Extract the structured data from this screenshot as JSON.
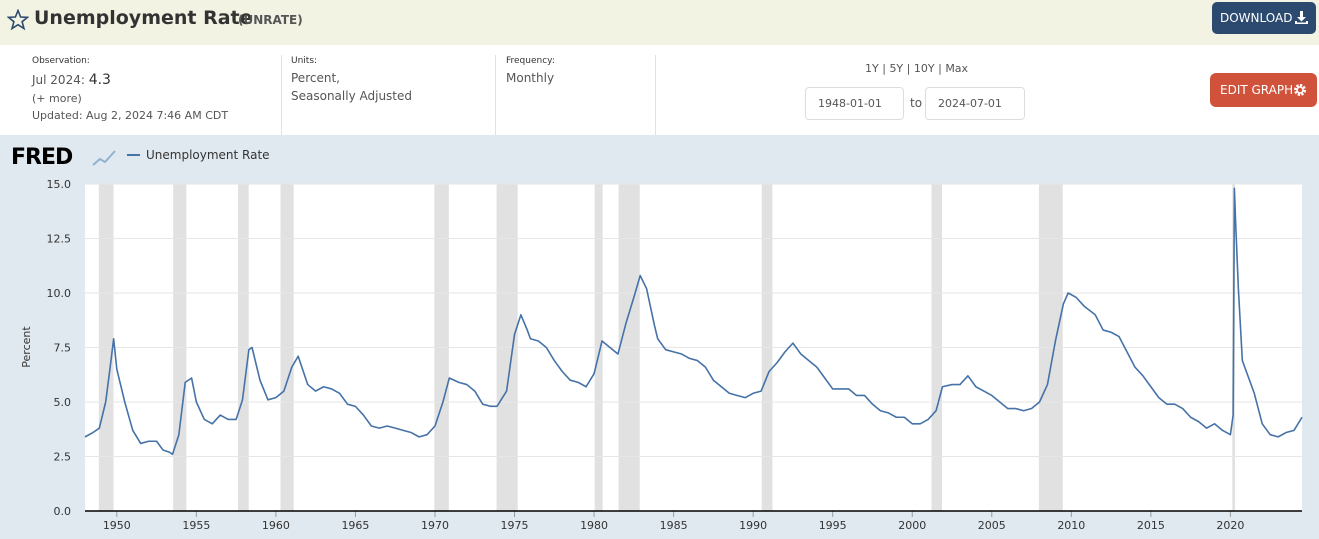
{
  "header": {
    "title": "Unemployment Rate",
    "series_id": "(UNRATE)",
    "download": "DOWNLOAD"
  },
  "info": {
    "observation_label": "Observation:",
    "observation_date": "Jul 2024:",
    "observation_value": "4.3",
    "more": "(+ more)",
    "updated": "Updated: Aug 2, 2024 7:46 AM CDT",
    "units_label": "Units:",
    "units": [
      "Percent,",
      "Seasonally Adjusted"
    ],
    "frequency_label": "Frequency:",
    "frequency": "Monthly"
  },
  "controls": {
    "ranges": [
      "1Y",
      "5Y",
      "10Y",
      "Max"
    ],
    "separator": "|",
    "start": "1948-01-01",
    "to": "to",
    "end": "2024-07-01",
    "edit": "EDIT GRAPH"
  },
  "chart_data": {
    "type": "line",
    "logo": "FRED",
    "ylabel": "Percent",
    "x": [
      1948.0,
      1948.5,
      1948.9,
      1949.3,
      1949.6,
      1949.8,
      1950.0,
      1950.5,
      1951.0,
      1951.5,
      1952.0,
      1952.5,
      1952.9,
      1953.3,
      1953.5,
      1953.9,
      1954.3,
      1954.7,
      1955.0,
      1955.5,
      1956.0,
      1956.5,
      1957.0,
      1957.5,
      1957.9,
      1958.3,
      1958.5,
      1959.0,
      1959.5,
      1960.0,
      1960.5,
      1961.0,
      1961.4,
      1962.0,
      1962.5,
      1963.0,
      1963.5,
      1964.0,
      1964.5,
      1965.0,
      1965.5,
      1966.0,
      1966.5,
      1967.0,
      1967.5,
      1968.0,
      1968.5,
      1969.0,
      1969.5,
      1970.0,
      1970.5,
      1970.9,
      1971.5,
      1972.0,
      1972.5,
      1973.0,
      1973.5,
      1973.9,
      1974.5,
      1975.0,
      1975.4,
      1975.8,
      1976.0,
      1976.5,
      1977.0,
      1977.5,
      1978.0,
      1978.5,
      1979.0,
      1979.5,
      1980.0,
      1980.5,
      1981.0,
      1981.5,
      1982.0,
      1982.5,
      1982.9,
      1983.3,
      1983.8,
      1984.0,
      1984.5,
      1985.0,
      1985.5,
      1986.0,
      1986.5,
      1987.0,
      1987.5,
      1988.0,
      1988.5,
      1989.0,
      1989.5,
      1990.0,
      1990.5,
      1991.0,
      1991.5,
      1992.0,
      1992.5,
      1993.0,
      1993.5,
      1994.0,
      1994.5,
      1995.0,
      1995.5,
      1996.0,
      1996.5,
      1997.0,
      1997.5,
      1998.0,
      1998.5,
      1999.0,
      1999.5,
      2000.0,
      2000.5,
      2001.0,
      2001.5,
      2001.9,
      2002.5,
      2003.0,
      2003.5,
      2004.0,
      2004.5,
      2005.0,
      2005.5,
      2006.0,
      2006.5,
      2007.0,
      2007.5,
      2008.0,
      2008.5,
      2009.0,
      2009.5,
      2009.8,
      2010.3,
      2010.8,
      2011.5,
      2012.0,
      2012.5,
      2013.0,
      2013.5,
      2014.0,
      2014.5,
      2015.0,
      2015.5,
      2016.0,
      2016.5,
      2017.0,
      2017.5,
      2018.0,
      2018.5,
      2019.0,
      2019.5,
      2020.0,
      2020.17,
      2020.25,
      2020.33,
      2020.5,
      2020.75,
      2021.0,
      2021.5,
      2022.0,
      2022.5,
      2023.0,
      2023.5,
      2024.0,
      2024.5
    ],
    "series": [
      {
        "name": "Unemployment Rate",
        "color": "#4572a7",
        "values": [
          3.4,
          3.6,
          3.8,
          5.0,
          6.7,
          7.9,
          6.5,
          5.0,
          3.7,
          3.1,
          3.2,
          3.2,
          2.8,
          2.7,
          2.6,
          3.5,
          5.9,
          6.1,
          5.0,
          4.2,
          4.0,
          4.4,
          4.2,
          4.2,
          5.1,
          7.4,
          7.5,
          6.0,
          5.1,
          5.2,
          5.5,
          6.6,
          7.1,
          5.8,
          5.5,
          5.7,
          5.6,
          5.4,
          4.9,
          4.8,
          4.4,
          3.9,
          3.8,
          3.9,
          3.8,
          3.7,
          3.6,
          3.4,
          3.5,
          3.9,
          5.0,
          6.1,
          5.9,
          5.8,
          5.5,
          4.9,
          4.8,
          4.8,
          5.5,
          8.1,
          9.0,
          8.3,
          7.9,
          7.8,
          7.5,
          6.9,
          6.4,
          6.0,
          5.9,
          5.7,
          6.3,
          7.8,
          7.5,
          7.2,
          8.6,
          9.8,
          10.8,
          10.2,
          8.5,
          7.9,
          7.4,
          7.3,
          7.2,
          7.0,
          6.9,
          6.6,
          6.0,
          5.7,
          5.4,
          5.3,
          5.2,
          5.4,
          5.5,
          6.4,
          6.8,
          7.3,
          7.7,
          7.2,
          6.9,
          6.6,
          6.1,
          5.6,
          5.6,
          5.6,
          5.3,
          5.3,
          4.9,
          4.6,
          4.5,
          4.3,
          4.3,
          4.0,
          4.0,
          4.2,
          4.6,
          5.7,
          5.8,
          5.8,
          6.2,
          5.7,
          5.5,
          5.3,
          5.0,
          4.7,
          4.7,
          4.6,
          4.7,
          5.0,
          5.8,
          7.8,
          9.5,
          10.0,
          9.8,
          9.4,
          9.0,
          8.3,
          8.2,
          8.0,
          7.3,
          6.6,
          6.2,
          5.7,
          5.2,
          4.9,
          4.9,
          4.7,
          4.3,
          4.1,
          3.8,
          4.0,
          3.7,
          3.5,
          4.4,
          14.8,
          13.2,
          10.2,
          6.9,
          6.4,
          5.4,
          4.0,
          3.5,
          3.4,
          3.6,
          3.7,
          4.3
        ]
      }
    ],
    "recessions": [
      [
        1948.87,
        1949.79
      ],
      [
        1953.54,
        1954.37
      ],
      [
        1957.62,
        1958.29
      ],
      [
        1960.29,
        1961.12
      ],
      [
        1969.96,
        1970.87
      ],
      [
        1973.87,
        1975.2
      ],
      [
        1980.04,
        1980.54
      ],
      [
        1981.54,
        1982.87
      ],
      [
        1990.54,
        1991.21
      ],
      [
        2001.21,
        2001.87
      ],
      [
        2007.96,
        2009.46
      ],
      [
        2020.12,
        2020.29
      ]
    ],
    "recession_color": "#e1e1e1",
    "xlim": [
      1948,
      2024.5
    ],
    "xticks": [
      1950,
      1955,
      1960,
      1965,
      1970,
      1975,
      1980,
      1985,
      1990,
      1995,
      2000,
      2005,
      2010,
      2015,
      2020
    ],
    "ylim": [
      0,
      15
    ],
    "yticks": [
      {
        "value": 0,
        "label": "0.0"
      },
      2.5,
      {
        "value": 5,
        "label": "5.0"
      },
      7.5,
      {
        "value": 10,
        "label": "10.0"
      },
      12.5,
      {
        "value": 15,
        "label": "15.0"
      }
    ],
    "grid": true
  }
}
